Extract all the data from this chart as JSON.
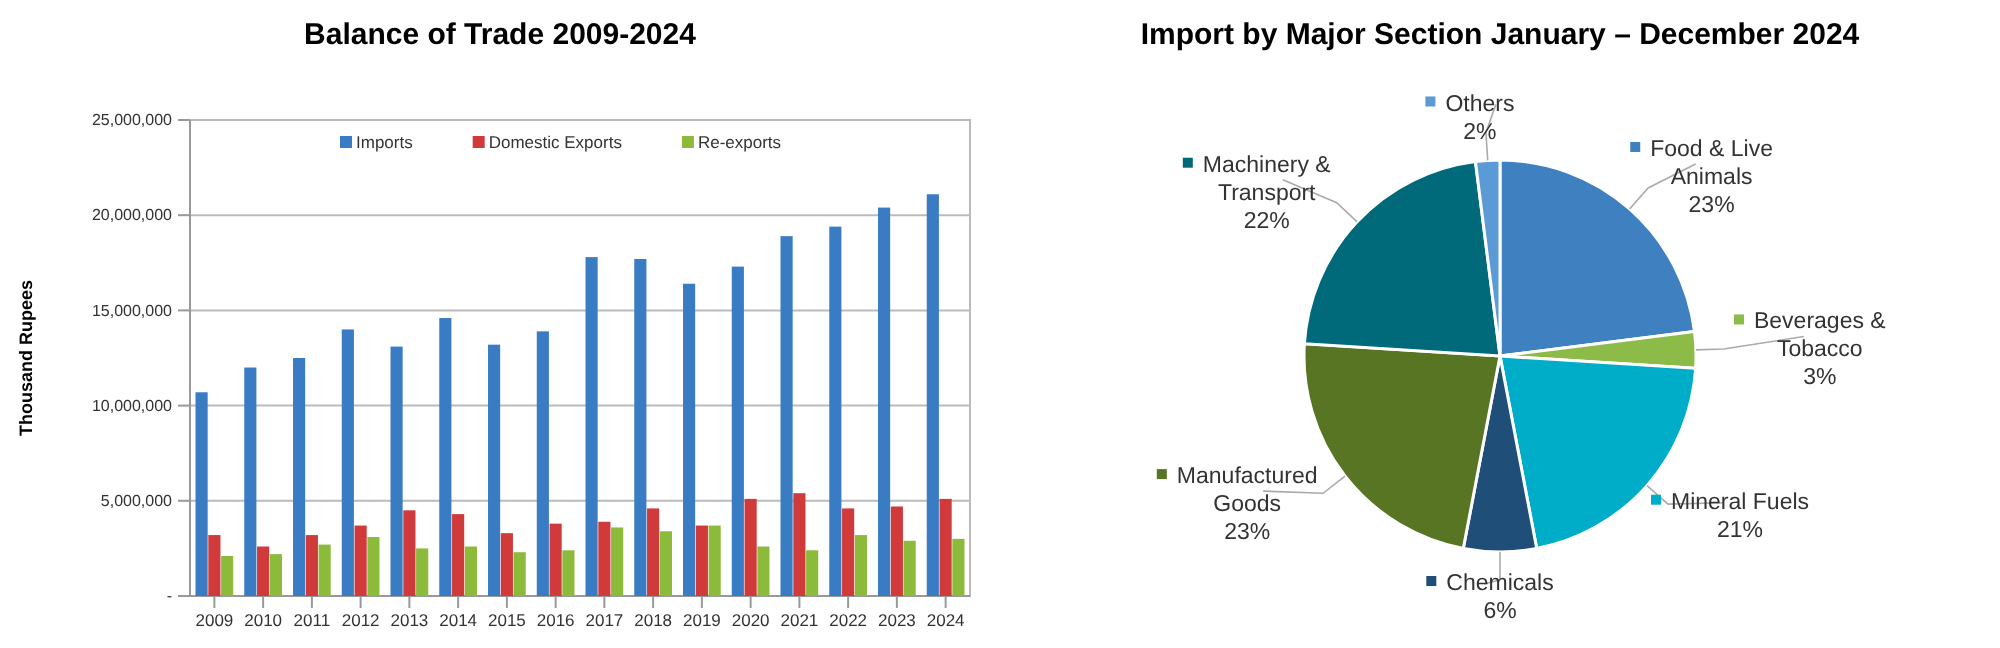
{
  "chart_data": [
    {
      "type": "bar",
      "title": "Balance of Trade 2009-2024",
      "ylabel": "Thousand Rupees",
      "categories": [
        "2009",
        "2010",
        "2011",
        "2012",
        "2013",
        "2014",
        "2015",
        "2016",
        "2017",
        "2018",
        "2019",
        "2020",
        "2021",
        "2022",
        "2023",
        "2024"
      ],
      "series": [
        {
          "name": "Imports",
          "color": "#3a7cc4",
          "values": [
            10700000,
            12000000,
            12500000,
            14000000,
            13100000,
            14600000,
            13200000,
            13900000,
            17800000,
            17700000,
            16400000,
            17300000,
            18900000,
            19400000,
            20400000,
            21100000
          ]
        },
        {
          "name": "Domestic Exports",
          "color": "#d03a3a",
          "values": [
            3200000,
            2600000,
            3200000,
            3700000,
            4500000,
            4300000,
            3300000,
            3800000,
            3900000,
            4600000,
            3700000,
            5100000,
            5400000,
            4600000,
            4700000,
            5100000
          ]
        },
        {
          "name": "Re-exports",
          "color": "#8cbb3c",
          "values": [
            2100000,
            2200000,
            2700000,
            3100000,
            2500000,
            2600000,
            2300000,
            2400000,
            3600000,
            3400000,
            3700000,
            2600000,
            2400000,
            3200000,
            2900000,
            3000000
          ]
        }
      ],
      "ylim": [
        0,
        25000000
      ],
      "yticks": [
        {
          "value": 0,
          "label": "-"
        },
        {
          "value": 5000000,
          "label": "5,000,000"
        },
        {
          "value": 10000000,
          "label": "10,000,000"
        },
        {
          "value": 15000000,
          "label": "15,000,000"
        },
        {
          "value": 20000000,
          "label": "20,000,000"
        },
        {
          "value": 25000000,
          "label": "25,000,000"
        }
      ],
      "grid": "y",
      "legend": "top"
    },
    {
      "type": "pie",
      "title": "Import by Major Section January – December 2024",
      "categories": [
        "Food & Live Animals",
        "Beverages & Tobacco",
        "Mineral Fuels",
        "Chemicals",
        "Manufactured Goods",
        "Machinery & Transport",
        "Others"
      ],
      "values": [
        23,
        3,
        21,
        6,
        23,
        22,
        2
      ],
      "value_labels": [
        "23%",
        "3%",
        "21%",
        "6%",
        "23%",
        "22%",
        "2%"
      ],
      "legend": "right",
      "colors": [
        "#3f80c0",
        "#8dbb48",
        "#00adc8",
        "#1f4e79",
        "#577522",
        "#006a7a",
        "#5b9bd5"
      ]
    }
  ]
}
